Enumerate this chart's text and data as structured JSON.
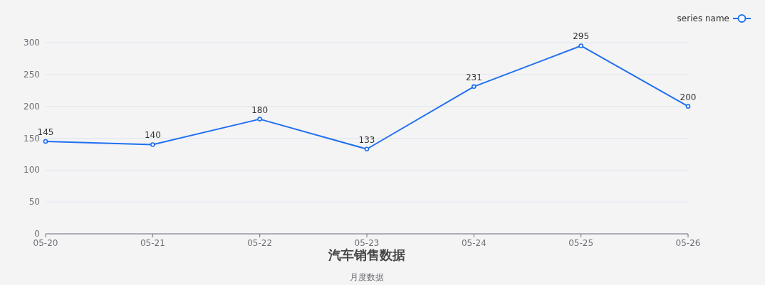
{
  "chart_data": {
    "type": "line",
    "title": "汽车销售数据",
    "subtitle": "月度数据",
    "categories": [
      "05-20",
      "05-21",
      "05-22",
      "05-23",
      "05-24",
      "05-25",
      "05-26"
    ],
    "series": [
      {
        "name": "series name",
        "color": "#1f6ff2",
        "values": [
          145,
          140,
          180,
          133,
          231,
          295,
          200
        ]
      }
    ],
    "ylim": [
      0,
      300
    ],
    "yticks": [
      0,
      50,
      100,
      150,
      200,
      250,
      300
    ],
    "grid": "y",
    "legend": "top right",
    "marker": "circle",
    "line_style": "solid",
    "data_labels": true
  }
}
